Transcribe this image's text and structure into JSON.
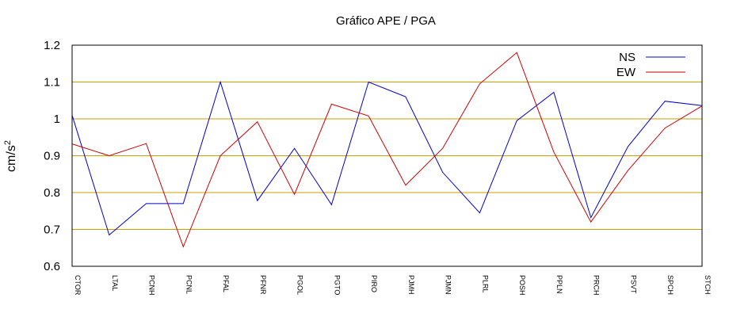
{
  "chart_data": {
    "type": "line",
    "title": "Gráfico  APE / PGA",
    "xlabel": "",
    "ylabel": "cm/s",
    "ylabel_superscript": "2",
    "ylim": [
      0.6,
      1.2
    ],
    "yticks": [
      "0.6",
      "0.7",
      "0.8",
      "0.9",
      "1",
      "1.1",
      "1.2"
    ],
    "grid": true,
    "legend": "top-right",
    "categories": [
      "CTOR",
      "LTAL",
      "PCNH",
      "PCNL",
      "PFAL",
      "PFNR",
      "PGOL",
      "PGTO",
      "PIRO",
      "PJMH",
      "PJMN",
      "PLRL",
      "POSH",
      "PPLN",
      "PRCH",
      "PSVT",
      "SPCH",
      "STCH"
    ],
    "series": [
      {
        "name": "NS",
        "color": "#0000cc",
        "values": [
          1.01,
          0.685,
          0.77,
          0.77,
          1.1,
          0.778,
          0.92,
          0.767,
          1.1,
          1.06,
          0.855,
          0.745,
          0.995,
          1.072,
          0.732,
          0.925,
          1.048,
          1.036
        ]
      },
      {
        "name": "EW",
        "color": "#cc0000",
        "values": [
          0.932,
          0.9,
          0.933,
          0.653,
          0.9,
          0.992,
          0.795,
          1.04,
          1.008,
          0.82,
          0.92,
          1.095,
          1.18,
          0.91,
          0.72,
          0.86,
          0.975,
          1.035
        ]
      }
    ],
    "grid_color": "#cca000"
  }
}
